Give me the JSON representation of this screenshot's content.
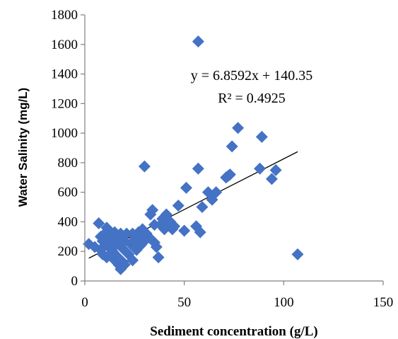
{
  "chart_data": {
    "type": "scatter",
    "xlabel": "Sediment concentration (g/L)",
    "ylabel": "Water Salinity (mg/L)",
    "xlim": [
      0,
      150
    ],
    "ylim": [
      0,
      1800
    ],
    "xticks": [
      0,
      50,
      100,
      150
    ],
    "yticks": [
      0,
      200,
      400,
      600,
      800,
      1000,
      1200,
      1400,
      1600,
      1800
    ],
    "grid": false,
    "marker": "diamond",
    "marker_color": "#4472C4",
    "trendline": {
      "type": "linear",
      "slope": 6.8592,
      "intercept": 140.35,
      "x_range": [
        2,
        107
      ],
      "color": "#000000",
      "equation_label": "y = 6.8592x + 140.35",
      "r2_label": "R² = 0.4925"
    },
    "points": [
      [
        2,
        250
      ],
      [
        5,
        230
      ],
      [
        7,
        390
      ],
      [
        8,
        300
      ],
      [
        8,
        210
      ],
      [
        9,
        270
      ],
      [
        9,
        180
      ],
      [
        10,
        320
      ],
      [
        10,
        240
      ],
      [
        11,
        360
      ],
      [
        11,
        160
      ],
      [
        12,
        300
      ],
      [
        12,
        230
      ],
      [
        13,
        330
      ],
      [
        13,
        260
      ],
      [
        14,
        200
      ],
      [
        14,
        290
      ],
      [
        15,
        140
      ],
      [
        15,
        330
      ],
      [
        16,
        250
      ],
      [
        16,
        170
      ],
      [
        17,
        300
      ],
      [
        17,
        110
      ],
      [
        18,
        320
      ],
      [
        18,
        80
      ],
      [
        19,
        220
      ],
      [
        19,
        130
      ],
      [
        20,
        270
      ],
      [
        20,
        110
      ],
      [
        21,
        320
      ],
      [
        22,
        180
      ],
      [
        23,
        250
      ],
      [
        24,
        320
      ],
      [
        24,
        140
      ],
      [
        25,
        280
      ],
      [
        26,
        210
      ],
      [
        27,
        330
      ],
      [
        28,
        240
      ],
      [
        28,
        300
      ],
      [
        29,
        350
      ],
      [
        30,
        775
      ],
      [
        30,
        270
      ],
      [
        31,
        320
      ],
      [
        32,
        300
      ],
      [
        33,
        450
      ],
      [
        34,
        480
      ],
      [
        35,
        380
      ],
      [
        35,
        260
      ],
      [
        36,
        230
      ],
      [
        37,
        160
      ],
      [
        38,
        380
      ],
      [
        39,
        420
      ],
      [
        40,
        350
      ],
      [
        41,
        450
      ],
      [
        42,
        380
      ],
      [
        43,
        400
      ],
      [
        44,
        350
      ],
      [
        45,
        370
      ],
      [
        47,
        510
      ],
      [
        50,
        340
      ],
      [
        51,
        630
      ],
      [
        56,
        370
      ],
      [
        57,
        1620
      ],
      [
        57,
        760
      ],
      [
        58,
        330
      ],
      [
        59,
        500
      ],
      [
        62,
        600
      ],
      [
        64,
        550
      ],
      [
        66,
        600
      ],
      [
        71,
        700
      ],
      [
        72,
        710
      ],
      [
        73,
        720
      ],
      [
        74,
        910
      ],
      [
        77,
        1035
      ],
      [
        88,
        760
      ],
      [
        89,
        975
      ],
      [
        94,
        690
      ],
      [
        96,
        750
      ],
      [
        107,
        180
      ]
    ]
  }
}
